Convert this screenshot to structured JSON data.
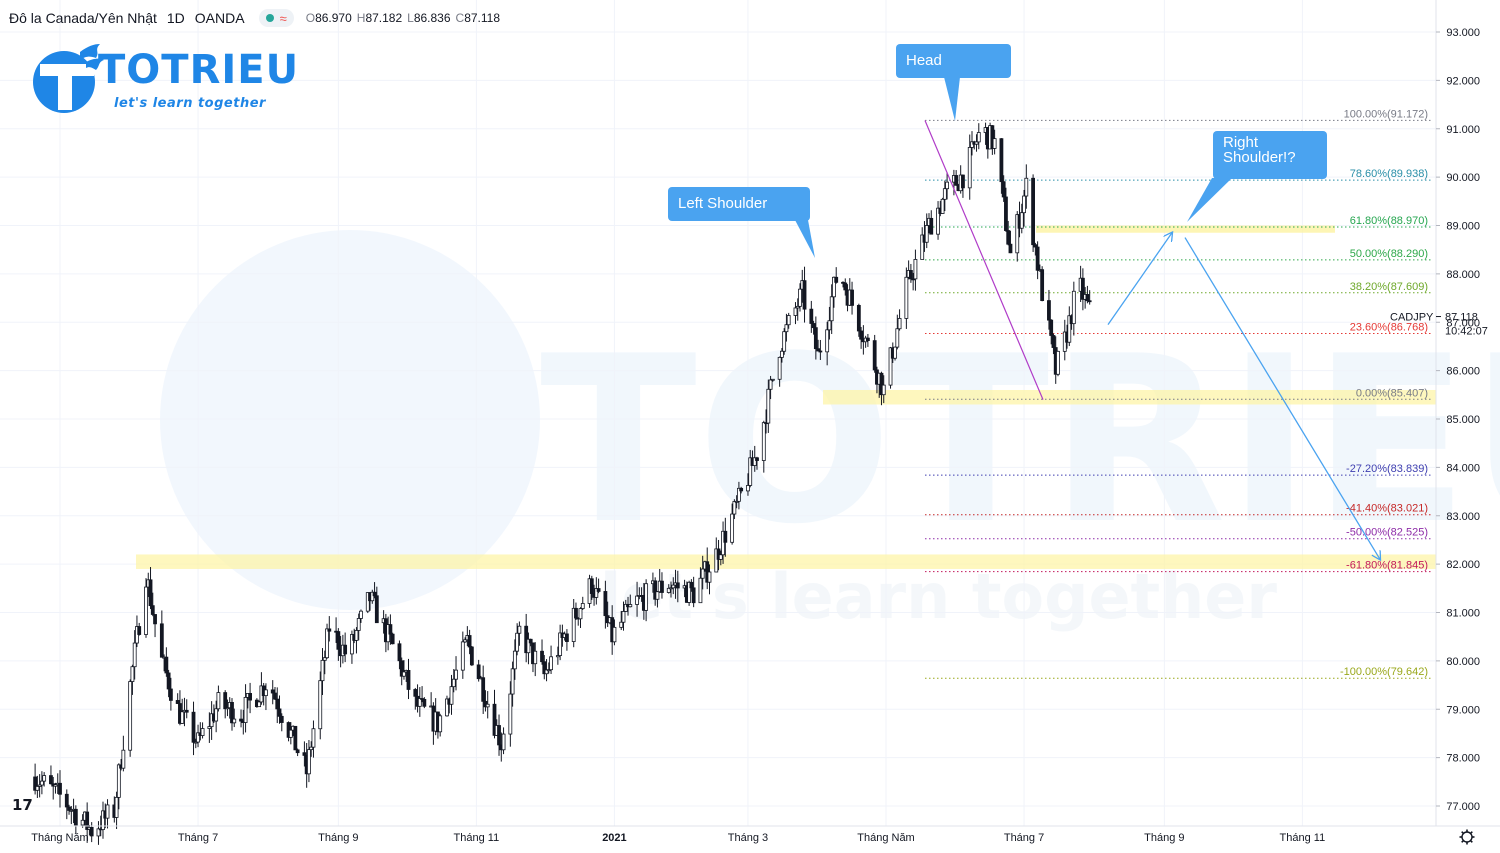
{
  "header": {
    "symbol": "Đô la Canada/Yên Nhật",
    "timeframe": "1D",
    "source": "OANDA",
    "ohlc": [
      {
        "k": "O",
        "v": "86.970"
      },
      {
        "k": "H",
        "v": "87.182"
      },
      {
        "k": "L",
        "v": "86.836"
      },
      {
        "k": "C",
        "v": "87.118"
      }
    ]
  },
  "logo": {
    "name": "TOTRIEU",
    "tagline": "let's learn together"
  },
  "watermark": {
    "name": "TOTRIEU",
    "tagline": "let's learn together"
  },
  "tv_logo": "17",
  "colors": {
    "up": "#ffffff",
    "down": "#131722",
    "brand": "#1f86e6",
    "annotation": "#4aa3f0",
    "fib_zone": "#fdf3a3"
  },
  "chart_data": {
    "type": "candlestick",
    "symbol": "CADJPY",
    "last_price": "87.118",
    "countdown": "10:42:07",
    "y_ticks": [
      "93.000",
      "92.000",
      "91.000",
      "90.000",
      "89.000",
      "88.000",
      "87.000",
      "86.000",
      "85.000",
      "84.000",
      "83.000",
      "82.000",
      "81.000",
      "80.000",
      "79.000",
      "78.000",
      "77.000"
    ],
    "x_ticks": [
      {
        "label": "Tháng Năm",
        "bold": false
      },
      {
        "label": "Tháng 7",
        "bold": false
      },
      {
        "label": "Tháng 9",
        "bold": false
      },
      {
        "label": "Tháng 11",
        "bold": false
      },
      {
        "label": "2021",
        "bold": true
      },
      {
        "label": "Tháng 3",
        "bold": false
      },
      {
        "label": "Tháng Năm",
        "bold": false
      },
      {
        "label": "Tháng 7",
        "bold": false
      },
      {
        "label": "Tháng 9",
        "bold": false
      },
      {
        "label": "Tháng 11",
        "bold": false
      }
    ],
    "fib_levels": [
      {
        "label": "100.00%(91.172)",
        "price": 91.172,
        "color": "#787b86"
      },
      {
        "label": "78.60%(89.938)",
        "price": 89.938,
        "color": "#2a8fa8"
      },
      {
        "label": "61.80%(88.970)",
        "price": 88.97,
        "color": "#26a650"
      },
      {
        "label": "50.00%(88.290)",
        "price": 88.29,
        "color": "#2ea84a"
      },
      {
        "label": "38.20%(87.609)",
        "price": 87.609,
        "color": "#6ea82a"
      },
      {
        "label": "23.60%(86.768)",
        "price": 86.768,
        "color": "#e53935"
      },
      {
        "label": "0.00%(85.407)",
        "price": 85.407,
        "color": "#787b86"
      },
      {
        "label": "-27.20%(83.839)",
        "price": 83.839,
        "color": "#3f3fb0"
      },
      {
        "label": "-41.40%(83.021)",
        "price": 83.021,
        "color": "#c62828"
      },
      {
        "label": "-50.00%(82.525)",
        "price": 82.525,
        "color": "#8e2ca8"
      },
      {
        "label": "-61.80%(81.845)",
        "price": 81.845,
        "color": "#c2185b"
      },
      {
        "label": "-100.00%(79.642)",
        "price": 79.642,
        "color": "#9aa81c"
      }
    ],
    "annotations": [
      {
        "text": [
          "Head"
        ]
      },
      {
        "text": [
          "Left Shoulder"
        ]
      },
      {
        "text": [
          "Right",
          "Shoulder!?"
        ]
      }
    ],
    "price_path": [
      [
        "2020-04-20",
        77.6
      ],
      [
        "2020-05-01",
        77.2
      ],
      [
        "2020-05-15",
        76.5
      ],
      [
        "2020-05-25",
        76.9
      ],
      [
        "2020-06-01",
        79.5
      ],
      [
        "2020-06-08",
        81.8
      ],
      [
        "2020-06-15",
        80.0
      ],
      [
        "2020-06-22",
        79.0
      ],
      [
        "2020-07-01",
        78.3
      ],
      [
        "2020-07-10",
        79.1
      ],
      [
        "2020-07-20",
        78.9
      ],
      [
        "2020-08-01",
        79.6
      ],
      [
        "2020-08-10",
        78.6
      ],
      [
        "2020-08-18",
        77.7
      ],
      [
        "2020-08-28",
        80.7
      ],
      [
        "2020-09-05",
        80.1
      ],
      [
        "2020-09-15",
        81.3
      ],
      [
        "2020-09-25",
        80.3
      ],
      [
        "2020-10-05",
        79.1
      ],
      [
        "2020-10-15",
        78.7
      ],
      [
        "2020-10-28",
        80.4
      ],
      [
        "2020-11-05",
        79.3
      ],
      [
        "2020-11-12",
        78.3
      ],
      [
        "2020-11-20",
        80.6
      ],
      [
        "2020-12-01",
        79.7
      ],
      [
        "2020-12-12",
        80.7
      ],
      [
        "2020-12-22",
        81.6
      ],
      [
        "2020-12-31",
        80.5
      ],
      [
        "2021-01-10",
        81.2
      ],
      [
        "2021-01-25",
        81.6
      ],
      [
        "2021-02-05",
        81.4
      ],
      [
        "2021-02-15",
        82.2
      ],
      [
        "2021-02-25",
        83.3
      ],
      [
        "2021-03-05",
        84.3
      ],
      [
        "2021-03-15",
        86.5
      ],
      [
        "2021-03-25",
        87.6
      ],
      [
        "2021-04-01",
        86.3
      ],
      [
        "2021-04-10",
        88.1
      ],
      [
        "2021-04-20",
        86.9
      ],
      [
        "2021-04-30",
        85.6
      ],
      [
        "2021-05-10",
        87.7
      ],
      [
        "2021-05-20",
        89.0
      ],
      [
        "2021-05-28",
        89.7
      ],
      [
        "2021-06-05",
        90.1
      ],
      [
        "2021-06-12",
        91.0
      ],
      [
        "2021-06-18",
        90.7
      ],
      [
        "2021-06-25",
        88.4
      ],
      [
        "2021-07-02",
        89.8
      ],
      [
        "2021-07-08",
        87.9
      ],
      [
        "2021-07-15",
        86.0
      ],
      [
        "2021-07-19",
        86.6
      ],
      [
        "2021-07-25",
        87.8
      ],
      [
        "2021-07-31",
        87.1
      ]
    ]
  }
}
